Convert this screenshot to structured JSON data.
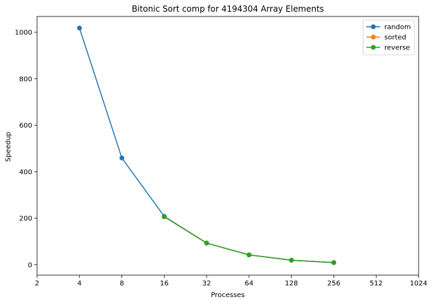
{
  "chart_data": {
    "type": "line",
    "title": "Bitonic Sort comp for 4194304 Array Elements",
    "xlabel": "Processes",
    "ylabel": "Speedup",
    "x_scale": "log2",
    "xlim": [
      2,
      1024
    ],
    "ylim": [
      -45,
      1068
    ],
    "x_ticks": [
      2,
      4,
      8,
      16,
      32,
      64,
      128,
      256,
      512,
      1024
    ],
    "y_ticks": [
      0,
      200,
      400,
      600,
      800,
      1000
    ],
    "grid": false,
    "legend_position": "top-right",
    "series": [
      {
        "name": "random",
        "color": "#1f77b4",
        "marker": "circle",
        "x": [
          4,
          8,
          16,
          32,
          64,
          128,
          256
        ],
        "y": [
          1018,
          459,
          208,
          93,
          42,
          19,
          9
        ]
      },
      {
        "name": "sorted",
        "color": "#ff7f0e",
        "marker": "circle",
        "x": [
          16,
          32,
          64,
          128,
          256
        ],
        "y": [
          206,
          93,
          42,
          19,
          9
        ]
      },
      {
        "name": "reverse",
        "color": "#2ca02c",
        "marker": "circle",
        "x": [
          16,
          32,
          64,
          128,
          256
        ],
        "y": [
          207,
          93,
          42,
          19,
          9
        ]
      }
    ]
  }
}
